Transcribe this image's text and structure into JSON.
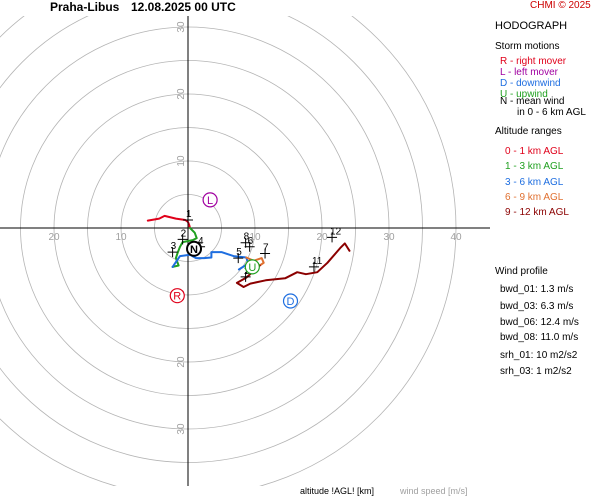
{
  "header": {
    "location": "Praha-Libus",
    "datetime": "12.08.2025 00 UTC",
    "copyright": "CHMI © 2025"
  },
  "panel": {
    "title": "HODOGRAPH",
    "storm_motions_title": "Storm motions",
    "storm_motions": [
      {
        "text": "R - right mover",
        "color": "#e0001a"
      },
      {
        "text": "L - left mover",
        "color": "#a000a0"
      },
      {
        "text": "D - downwind",
        "color": "#1e6ee0"
      },
      {
        "text": "U - upwind",
        "color": "#20a020"
      },
      {
        "text": "N - mean wind",
        "color": "#000000"
      },
      {
        "text": "in 0 - 6 km AGL",
        "color": "#000000"
      }
    ],
    "altitude_ranges_title": "Altitude ranges",
    "altitude_ranges": [
      {
        "text": "0 - 1 km AGL",
        "color": "#e0001a"
      },
      {
        "text": "1 - 3 km AGL",
        "color": "#20a020"
      },
      {
        "text": "3 - 6 km AGL",
        "color": "#1e6ee0"
      },
      {
        "text": "6 - 9 km AGL",
        "color": "#e07030"
      },
      {
        "text": "9 - 12 km AGL",
        "color": "#8b0000"
      }
    ],
    "wind_profile_title": "Wind profile",
    "wind_profile": [
      "bwd_01: 1.3 m/s",
      "bwd_03: 6.3 m/s",
      "bwd_06: 12.4 m/s",
      "bwd_08: 11.0 m/s",
      "srh_01: 10 m2/s2",
      "srh_03: 1 m2/s2"
    ]
  },
  "footer": {
    "altitude_label": "altitude !AGL! [km]",
    "wind_speed_label": "wind speed [m/s]"
  },
  "chart_data": {
    "type": "line",
    "rings": [
      5,
      10,
      15,
      20,
      25,
      30,
      35,
      40
    ],
    "ring_labels_x": [
      "20",
      "10",
      "10",
      "20",
      "30",
      "40"
    ],
    "ring_labels_x_values": [
      -20,
      -10,
      10,
      20,
      30,
      40
    ],
    "ring_labels_y": [
      "30",
      "20",
      "10",
      "10",
      "20",
      "30"
    ],
    "ring_labels_y_values": [
      30,
      20,
      10,
      -10,
      -20,
      -30
    ],
    "grid": true,
    "series": [
      {
        "color": "#e0001a",
        "points": [
          [
            -6,
            1.1
          ],
          [
            -4.3,
            1.4
          ],
          [
            -3.5,
            1.8
          ],
          [
            -1.8,
            1.4
          ],
          [
            -0.4,
            1.2
          ],
          [
            0,
            0.9
          ],
          [
            0.2,
            0.4
          ],
          [
            0.3,
            0
          ]
        ]
      },
      {
        "color": "#20a020",
        "points": [
          [
            0.3,
            0
          ],
          [
            1.0,
            -0.7
          ],
          [
            1.3,
            -1.5
          ],
          [
            0.7,
            -1.8
          ],
          [
            -0.8,
            -2.1
          ],
          [
            -1.2,
            -2.8
          ],
          [
            -1.5,
            -3.6
          ],
          [
            -1.8,
            -4.5
          ],
          [
            -1.4,
            -5.6
          ],
          [
            -2.3,
            -5.8
          ]
        ]
      },
      {
        "color": "#1e6ee0",
        "points": [
          [
            -2.3,
            -5.8
          ],
          [
            -1.2,
            -4.2
          ],
          [
            0.3,
            -4.0
          ],
          [
            1.2,
            -4.5
          ],
          [
            2.4,
            -4.5
          ],
          [
            3.5,
            -4.4
          ],
          [
            3.5,
            -3.6
          ],
          [
            5.0,
            -3.6
          ],
          [
            6.8,
            -4.2
          ],
          [
            8.7,
            -4.4
          ],
          [
            9.0,
            -5.3
          ],
          [
            7.6,
            -6.2
          ]
        ]
      },
      {
        "color": "#e07030",
        "points": [
          [
            8.7,
            -4.4
          ],
          [
            9.8,
            -4.9
          ],
          [
            11.0,
            -4.5
          ],
          [
            11.3,
            -5.2
          ],
          [
            10.7,
            -5.6
          ]
        ]
      },
      {
        "color": "#8b0000",
        "points": [
          [
            10.7,
            -5.6
          ],
          [
            8.7,
            -7.4
          ],
          [
            7.3,
            -8.2
          ],
          [
            8.3,
            -8.8
          ],
          [
            9.3,
            -8.3
          ],
          [
            11.6,
            -7.8
          ],
          [
            14.5,
            -7.5
          ],
          [
            16.3,
            -6.6
          ],
          [
            17.6,
            -6.9
          ],
          [
            19.3,
            -6.6
          ],
          [
            20.8,
            -5.2
          ],
          [
            22.8,
            -2.9
          ],
          [
            23.4,
            -2.3
          ],
          [
            24.1,
            -3.4
          ]
        ]
      }
    ],
    "height_labels": [
      {
        "label": "1",
        "x": 0,
        "y": 1.2
      },
      {
        "label": "2",
        "x": -0.8,
        "y": -1.7
      },
      {
        "label": "3",
        "x": -2.3,
        "y": -3.6
      },
      {
        "label": "4",
        "x": 1.8,
        "y": -2.8
      },
      {
        "label": "5",
        "x": 7.5,
        "y": -4.5
      },
      {
        "label": "6",
        "x": 9.2,
        "y": -2.8
      },
      {
        "label": "7",
        "x": 11.5,
        "y": -3.8
      },
      {
        "label": "8",
        "x": 8.6,
        "y": -2.2
      },
      {
        "label": "10",
        "x": 8.6,
        "y": -7.3
      },
      {
        "label": "11",
        "x": 18.8,
        "y": -5.8
      },
      {
        "label": "12",
        "x": 21.5,
        "y": -1.4
      }
    ],
    "markers": [
      {
        "letter": "L",
        "x": 3.3,
        "y": 4.2,
        "color": "#a000a0"
      },
      {
        "letter": "N",
        "x": 0.9,
        "y": -3.1,
        "color": "#000000"
      },
      {
        "letter": "R",
        "x": -1.6,
        "y": -10.1,
        "color": "#e0001a"
      },
      {
        "letter": "U",
        "x": 9.6,
        "y": -5.8,
        "color": "#20a020"
      },
      {
        "letter": "D",
        "x": 15.3,
        "y": -10.9,
        "color": "#1e6ee0"
      }
    ]
  }
}
